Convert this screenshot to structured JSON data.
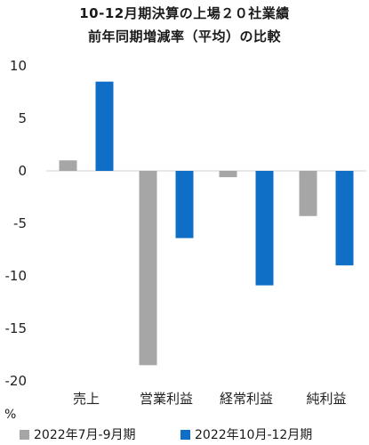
{
  "chart_data": {
    "type": "bar",
    "title": "10-12月期決算の上場２０社業績",
    "subtitle": "前年同期増減率（平均）の比較",
    "ylabel": "%",
    "ylim": [
      -20,
      10
    ],
    "yticks": [
      10,
      5,
      0,
      -5,
      -10,
      -15,
      -20
    ],
    "categories": [
      "売上",
      "営業利益",
      "経常利益",
      "純利益"
    ],
    "grid": false,
    "legend_position": "bottom",
    "series": [
      {
        "name": "2022年7月-9月期",
        "color": "#a6a6a6",
        "values": [
          1.0,
          -18.5,
          -0.6,
          -4.3
        ]
      },
      {
        "name": "2022年10月-12月期",
        "color": "#0f6fc6",
        "values": [
          8.5,
          -6.4,
          -10.9,
          -9.0
        ]
      }
    ]
  }
}
